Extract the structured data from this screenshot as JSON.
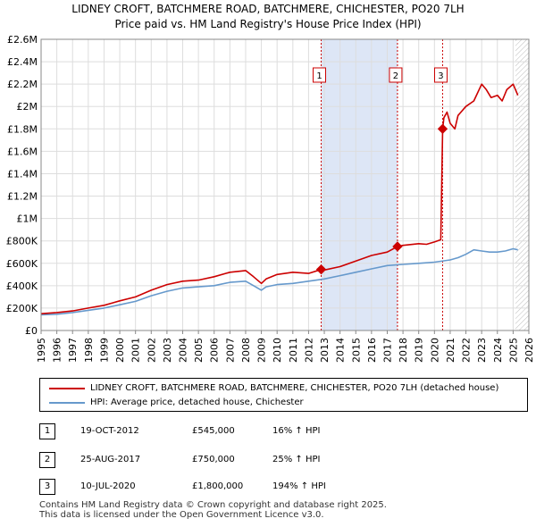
{
  "title_line1": "LIDNEY CROFT, BATCHMERE ROAD, BATCHMERE, CHICHESTER, PO20 7LH",
  "title_line2": "Price paid vs. HM Land Registry's House Price Index (HPI)",
  "colors": {
    "property": "#cc0000",
    "hpi": "#6699cc",
    "shade": "#dde6f6",
    "marker_line": "#cc0000"
  },
  "chart_data": {
    "type": "line",
    "title": "LIDNEY CROFT, BATCHMERE ROAD, BATCHMERE, CHICHESTER, PO20 7LH — Price paid vs. HM Land Registry's House Price Index (HPI)",
    "xlim": [
      1995,
      2026
    ],
    "ylim": [
      0,
      2600000
    ],
    "y_ticks": [
      {
        "value": 0,
        "label": "£0"
      },
      {
        "value": 200000,
        "label": "£200K"
      },
      {
        "value": 400000,
        "label": "£400K"
      },
      {
        "value": 600000,
        "label": "£600K"
      },
      {
        "value": 800000,
        "label": "£800K"
      },
      {
        "value": 1000000,
        "label": "£1M"
      },
      {
        "value": 1200000,
        "label": "£1.2M"
      },
      {
        "value": 1400000,
        "label": "£1.4M"
      },
      {
        "value": 1600000,
        "label": "£1.6M"
      },
      {
        "value": 1800000,
        "label": "£1.8M"
      },
      {
        "value": 2000000,
        "label": "£2M"
      },
      {
        "value": 2200000,
        "label": "£2.2M"
      },
      {
        "value": 2400000,
        "label": "£2.4M"
      },
      {
        "value": 2600000,
        "label": "£2.6M"
      }
    ],
    "x_ticks": [
      "1995",
      "1996",
      "1997",
      "1998",
      "1999",
      "2000",
      "2001",
      "2002",
      "2003",
      "2004",
      "2005",
      "2006",
      "2007",
      "2008",
      "2009",
      "2010",
      "2011",
      "2012",
      "2013",
      "2014",
      "2015",
      "2016",
      "2017",
      "2018",
      "2019",
      "2020",
      "2021",
      "2022",
      "2023",
      "2024",
      "2025",
      "2026"
    ],
    "shaded_ranges": [
      [
        2012.8,
        2017.65
      ]
    ],
    "forecast_start": 2025.15,
    "series": [
      {
        "name": "LIDNEY CROFT, BATCHMERE ROAD, BATCHMERE, CHICHESTER, PO20 7LH (detached house)",
        "color": "#cc0000",
        "x": [
          1995,
          1996,
          1997,
          1998,
          1999,
          2000,
          2001,
          2002,
          2003,
          2004,
          2005,
          2006,
          2007,
          2008,
          2008.5,
          2009,
          2009.3,
          2010,
          2011,
          2012,
          2012.8,
          2013,
          2014,
          2015,
          2016,
          2017,
          2017.65,
          2018,
          2019,
          2019.5,
          2020,
          2020.4,
          2020.52,
          2020.6,
          2020.8,
          2021,
          2021.3,
          2021.5,
          2022,
          2022.5,
          2023,
          2023.3,
          2023.6,
          2024,
          2024.3,
          2024.6,
          2025,
          2025.3
        ],
        "y": [
          150000,
          160000,
          175000,
          200000,
          225000,
          265000,
          300000,
          360000,
          410000,
          440000,
          450000,
          480000,
          520000,
          535000,
          480000,
          420000,
          460000,
          500000,
          520000,
          510000,
          545000,
          540000,
          570000,
          620000,
          670000,
          700000,
          750000,
          760000,
          775000,
          770000,
          790000,
          810000,
          1800000,
          1900000,
          1950000,
          1850000,
          1800000,
          1920000,
          2000000,
          2050000,
          2200000,
          2150000,
          2080000,
          2100000,
          2050000,
          2150000,
          2200000,
          2100000
        ]
      },
      {
        "name": "HPI: Average price, detached house, Chichester",
        "color": "#6699cc",
        "x": [
          1995,
          1996,
          1997,
          1998,
          1999,
          2000,
          2001,
          2002,
          2003,
          2004,
          2005,
          2006,
          2007,
          2008,
          2008.5,
          2009,
          2009.3,
          2010,
          2011,
          2012,
          2013,
          2014,
          2015,
          2016,
          2017,
          2018,
          2019,
          2020,
          2021,
          2021.5,
          2022,
          2022.5,
          2023,
          2023.5,
          2024,
          2024.5,
          2025,
          2025.3
        ],
        "y": [
          140000,
          145000,
          160000,
          180000,
          200000,
          230000,
          260000,
          310000,
          350000,
          380000,
          390000,
          400000,
          430000,
          440000,
          400000,
          360000,
          390000,
          410000,
          420000,
          440000,
          460000,
          490000,
          520000,
          550000,
          580000,
          590000,
          600000,
          610000,
          630000,
          650000,
          680000,
          720000,
          710000,
          700000,
          700000,
          710000,
          730000,
          720000
        ]
      }
    ],
    "markers": [
      {
        "label": "1",
        "x": 2012.8,
        "y": 545000
      },
      {
        "label": "2",
        "x": 2017.65,
        "y": 750000
      },
      {
        "label": "3",
        "x": 2020.52,
        "y": 1800000
      }
    ]
  },
  "legend": {
    "property_label": "LIDNEY CROFT, BATCHMERE ROAD, BATCHMERE, CHICHESTER, PO20 7LH (detached house)",
    "hpi_label": "HPI: Average price, detached house, Chichester"
  },
  "transactions": [
    {
      "num": "1",
      "date": "19-OCT-2012",
      "price": "£545,000",
      "hpi": "16% ↑ HPI"
    },
    {
      "num": "2",
      "date": "25-AUG-2017",
      "price": "£750,000",
      "hpi": "25% ↑ HPI"
    },
    {
      "num": "3",
      "date": "10-JUL-2020",
      "price": "£1,800,000",
      "hpi": "194% ↑ HPI"
    }
  ],
  "footer_line1": "Contains HM Land Registry data © Crown copyright and database right 2025.",
  "footer_line2": "This data is licensed under the Open Government Licence v3.0."
}
